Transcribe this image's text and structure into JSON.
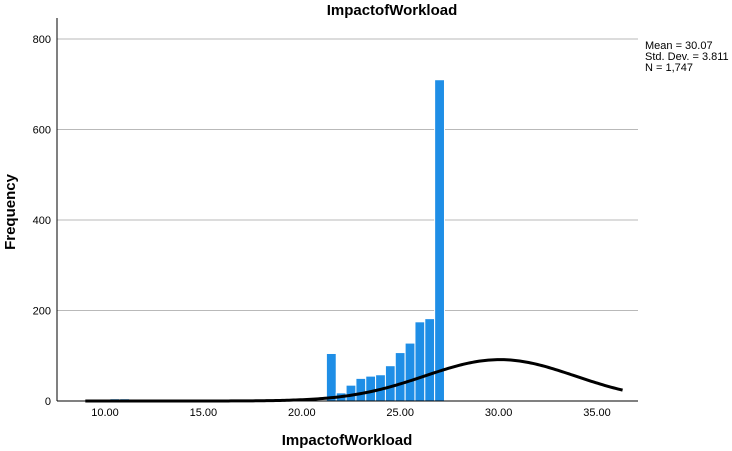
{
  "chart_data": {
    "type": "bar",
    "title": "ImpactofWorkload",
    "xlabel": "ImpactofWorkload",
    "ylabel": "Frequency",
    "xlim": [
      9,
      36.3
    ],
    "ylim": [
      0,
      800
    ],
    "x_ticks": [
      10,
      15,
      20,
      25,
      30,
      35
    ],
    "x_tick_labels": [
      "10.00",
      "15.00",
      "20.00",
      "25.00",
      "30.00",
      "35.00"
    ],
    "y_ticks": [
      0,
      200,
      400,
      600,
      800
    ],
    "y_tick_labels": [
      "0",
      "200",
      "400",
      "600",
      "800"
    ],
    "grid": "horizontal",
    "bar_color": "#1f8ee6",
    "curve_color": "#000000",
    "bin_width": 0.5,
    "bins": [
      {
        "x": 10.5,
        "y": 5
      },
      {
        "x": 11.0,
        "y": 5
      },
      {
        "x": 21.5,
        "y": 105
      },
      {
        "x": 22.0,
        "y": 18
      },
      {
        "x": 22.5,
        "y": 35
      },
      {
        "x": 23.0,
        "y": 50
      },
      {
        "x": 23.5,
        "y": 55
      },
      {
        "x": 24.0,
        "y": 58
      },
      {
        "x": 24.5,
        "y": 78
      },
      {
        "x": 25.0,
        "y": 107
      },
      {
        "x": 25.5,
        "y": 128
      },
      {
        "x": 26.0,
        "y": 175
      },
      {
        "x": 26.5,
        "y": 182
      },
      {
        "x": 27.0,
        "y": 710
      }
    ],
    "normal_curve": {
      "mean": 30.07,
      "std_dev": 3.811,
      "n": 1747
    }
  },
  "stats": {
    "mean": "Mean = 30.07",
    "std_dev": "Std. Dev. = 3.811",
    "n": "N = 1,747"
  }
}
